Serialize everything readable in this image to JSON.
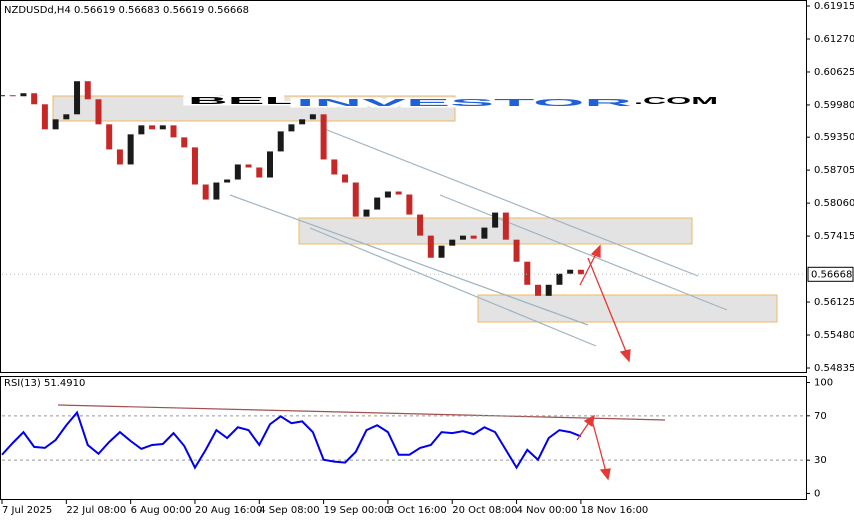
{
  "logo": {
    "part1": "BEL",
    "part2": "INVESTOR",
    "part3": ".COM"
  },
  "chart_data": [
    {
      "type": "candlestick",
      "title": "NZDUSDd,H4  0.56619 0.56683 0.56619 0.56668",
      "close": [
        0.6017,
        0.6015,
        0.60209,
        0.59993,
        0.59503,
        0.59699,
        0.59797,
        0.60444,
        0.60091,
        0.59601,
        0.5911,
        0.58816,
        0.59405,
        0.59581,
        0.59503,
        0.59581,
        0.59346,
        0.5915,
        0.58424,
        0.5813,
        0.58463,
        0.58522,
        0.58816,
        0.58757,
        0.58561,
        0.59071,
        0.59463,
        0.59601,
        0.59699,
        0.59797,
        0.58914,
        0.5862,
        0.58463,
        0.57796,
        0.57934,
        0.58169,
        0.58287,
        0.58228,
        0.57836,
        0.57424,
        0.56992,
        0.57228,
        0.57345,
        0.57424,
        0.57365,
        0.57581,
        0.57875,
        0.57345,
        0.56914,
        0.56463,
        0.56247,
        0.56463,
        0.56679,
        0.56757,
        0.56668
      ],
      "up_color": "#1a1a1a",
      "down_color": "#c62828",
      "last_price": 0.56668,
      "ylim": [
        0.54757,
        0.62013
      ],
      "yticks": [
        0.61915,
        {
          "value": 0.6127,
          "label": "0.61270"
        },
        0.60625,
        {
          "value": 0.5998,
          "label": "0.59980"
        },
        {
          "value": 0.5935,
          "label": "0.59350"
        },
        0.58705,
        {
          "value": 0.5806,
          "label": "0.58060"
        },
        0.57415,
        0.56125,
        {
          "value": 0.5548,
          "label": "0.55480"
        },
        0.54835
      ],
      "xlim": [
        0,
        75
      ],
      "xticks": [
        {
          "value": 0,
          "label": "7 Jul 2025"
        },
        {
          "value": 6,
          "label": "22 Jul 08:00"
        },
        {
          "value": 12,
          "label": "6 Aug 00:00"
        },
        {
          "value": 18,
          "label": "20 Aug 16:00"
        },
        {
          "value": 24,
          "label": "4 Sep 08:00"
        },
        {
          "value": 30,
          "label": "19 Sep 00:00"
        },
        {
          "value": 36,
          "label": "3 Oct 16:00"
        },
        {
          "value": 42,
          "label": "20 Oct 08:00"
        },
        {
          "value": 48,
          "label": "4 Nov 00:00"
        },
        {
          "value": 54,
          "label": "18 Nov 16:00"
        }
      ]
    },
    {
      "type": "line",
      "title": "RSI(13) 51.4910",
      "color": "#0000ee",
      "values": [
        34.9,
        45.5,
        55.3,
        42.0,
        41.1,
        48.2,
        61.5,
        73.0,
        43.7,
        35.8,
        46.4,
        55.3,
        47.3,
        40.2,
        43.7,
        44.6,
        54.4,
        42.9,
        23.3,
        39.3,
        57.1,
        50.0,
        59.7,
        57.1,
        43.7,
        62.4,
        69.5,
        63.3,
        65.0,
        55.3,
        30.4,
        28.7,
        27.8,
        37.5,
        57.1,
        61.5,
        55.3,
        34.9,
        34.9,
        41.1,
        43.7,
        55.3,
        54.4,
        56.2,
        53.5,
        59.7,
        55.3,
        39.3,
        23.3,
        39.3,
        30.4,
        50.0,
        57.1,
        55.3,
        51.491
      ],
      "ylim": [
        -5,
        105
      ],
      "yticks": [
        0,
        30,
        70,
        100
      ],
      "levels": [
        30,
        70
      ]
    }
  ]
}
